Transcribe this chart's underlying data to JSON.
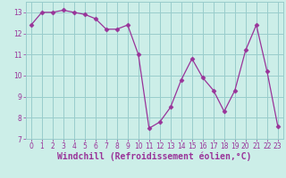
{
  "x": [
    0,
    1,
    2,
    3,
    4,
    5,
    6,
    7,
    8,
    9,
    10,
    11,
    12,
    13,
    14,
    15,
    16,
    17,
    18,
    19,
    20,
    21,
    22,
    23
  ],
  "y": [
    12.4,
    13.0,
    13.0,
    13.1,
    13.0,
    12.9,
    12.7,
    12.2,
    12.2,
    12.4,
    11.0,
    7.5,
    7.8,
    8.5,
    9.8,
    10.8,
    9.9,
    9.3,
    8.3,
    9.3,
    11.2,
    12.4,
    10.2,
    7.6
  ],
  "line_color": "#993399",
  "marker": "D",
  "markersize": 2.5,
  "linewidth": 0.9,
  "bg_color": "#cceee8",
  "grid_color": "#99cccc",
  "xlabel": "Windchill (Refroidissement éolien,°C)",
  "ylabel": "",
  "xlim": [
    -0.5,
    23.5
  ],
  "ylim": [
    7,
    13.5
  ],
  "yticks": [
    7,
    8,
    9,
    10,
    11,
    12,
    13
  ],
  "xticks": [
    0,
    1,
    2,
    3,
    4,
    5,
    6,
    7,
    8,
    9,
    10,
    11,
    12,
    13,
    14,
    15,
    16,
    17,
    18,
    19,
    20,
    21,
    22,
    23
  ],
  "xlabel_fontsize": 7,
  "tick_fontsize": 5.5,
  "xlabel_color": "#993399",
  "tick_color": "#993399"
}
